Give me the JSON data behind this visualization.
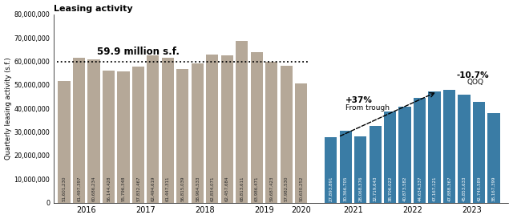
{
  "pre2020_values": [
    51601230,
    61497397,
    60686234,
    56144428,
    55796348,
    57832467,
    62494619,
    61447311,
    56815039,
    58964533,
    62834071,
    62457684,
    68813611,
    63986471,
    59687423,
    57982530,
    50630252
  ],
  "post2020_values": [
    27893891,
    30366705,
    28068376,
    32719643,
    38706022,
    40873582,
    44634337,
    47167121,
    47888367,
    45853633,
    42740589,
    38167399
  ],
  "pre2020_color": "#b5a898",
  "post2020_color": "#3a7ca5",
  "dotted_line_y": 59900000,
  "dotted_line_label": "59.9 million s.f.",
  "title": "Leasing activity",
  "ylabel": "Quarterly leasing activity (s.f.)",
  "x_tick_labels": [
    "2016",
    "2017",
    "2018",
    "2019",
    "2020",
    "2021",
    "2022",
    "2023"
  ],
  "ylim": [
    0,
    80000000
  ],
  "yticks": [
    0,
    10000000,
    20000000,
    30000000,
    40000000,
    50000000,
    60000000,
    70000000,
    80000000
  ],
  "arrow_text1": "+37%",
  "arrow_text2": "From trough",
  "arrow_text3": "-10.7%",
  "arrow_text4": "QOQ",
  "background_color": "#ffffff",
  "label_fontsize_pre": 4.0,
  "label_fontsize_post": 4.0
}
